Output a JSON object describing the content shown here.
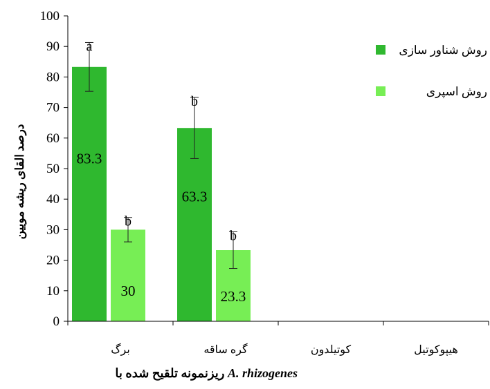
{
  "chart_data": {
    "type": "bar",
    "categories": [
      "برگ",
      "گره ساقه",
      "کوتیلدون",
      "هیپوکوتیل"
    ],
    "series": [
      {
        "name": "روش شناور سازی",
        "color": "#2fb82f",
        "values": [
          83.3,
          63.3,
          null,
          null
        ],
        "errors": [
          8,
          10,
          null,
          null
        ],
        "data_labels": [
          "83.3",
          "63.3",
          "",
          ""
        ],
        "significance": [
          "a",
          "b",
          "",
          ""
        ]
      },
      {
        "name": "روش اسپری",
        "color": "#77ee55",
        "values": [
          30,
          23.3,
          null,
          null
        ],
        "errors": [
          4,
          6,
          null,
          null
        ],
        "data_labels": [
          "30",
          "23.3",
          "",
          ""
        ],
        "significance": [
          "b",
          "b",
          "",
          ""
        ]
      }
    ],
    "ylabel": "درصد القای ریشه مویین",
    "xlabel_prefix": "ریزنمونه تلقیح شده با",
    "xlabel_italic": "A. rhizogenes",
    "ylim": [
      0,
      100
    ],
    "yticks": [
      "0",
      "10",
      "20",
      "30",
      "40",
      "50",
      "60",
      "70",
      "80",
      "90",
      "100"
    ],
    "legend_position": "right",
    "grid": false
  }
}
